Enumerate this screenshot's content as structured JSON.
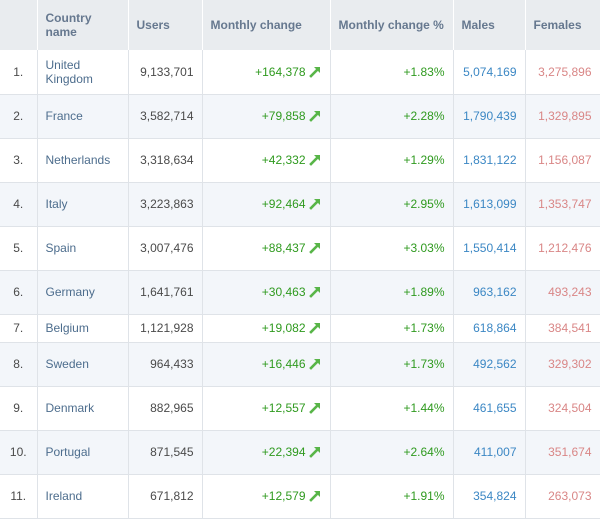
{
  "columns": {
    "country": "Country name",
    "users": "Users",
    "monthly_change": "Monthly change",
    "monthly_change_pct": "Monthly change %",
    "males": "Males",
    "females": "Females"
  },
  "icon": "up-arrow-icon",
  "colors": {
    "positive": "#2f9a1f",
    "males": "#3b87c4",
    "females": "#d98686",
    "country": "#4d6d8d",
    "header_text": "#66788f"
  },
  "rows": [
    {
      "rank": "1.",
      "country": "United Kingdom",
      "users": "9,133,701",
      "change": "+164,378",
      "pct": "+1.83%",
      "males": "5,074,169",
      "females": "3,275,896"
    },
    {
      "rank": "2.",
      "country": "France",
      "users": "3,582,714",
      "change": "+79,858",
      "pct": "+2.28%",
      "males": "1,790,439",
      "females": "1,329,895"
    },
    {
      "rank": "3.",
      "country": "Netherlands",
      "users": "3,318,634",
      "change": "+42,332",
      "pct": "+1.29%",
      "males": "1,831,122",
      "females": "1,156,087"
    },
    {
      "rank": "4.",
      "country": "Italy",
      "users": "3,223,863",
      "change": "+92,464",
      "pct": "+2.95%",
      "males": "1,613,099",
      "females": "1,353,747"
    },
    {
      "rank": "5.",
      "country": "Spain",
      "users": "3,007,476",
      "change": "+88,437",
      "pct": "+3.03%",
      "males": "1,550,414",
      "females": "1,212,476"
    },
    {
      "rank": "6.",
      "country": "Germany",
      "users": "1,641,761",
      "change": "+30,463",
      "pct": "+1.89%",
      "males": "963,162",
      "females": "493,243"
    },
    {
      "rank": "7.",
      "country": "Belgium",
      "users": "1,121,928",
      "change": "+19,082",
      "pct": "+1.73%",
      "males": "618,864",
      "females": "384,541"
    },
    {
      "rank": "8.",
      "country": "Sweden",
      "users": "964,433",
      "change": "+16,446",
      "pct": "+1.73%",
      "males": "492,562",
      "females": "329,302"
    },
    {
      "rank": "9.",
      "country": "Denmark",
      "users": "882,965",
      "change": "+12,557",
      "pct": "+1.44%",
      "males": "461,655",
      "females": "324,504"
    },
    {
      "rank": "10.",
      "country": "Portugal",
      "users": "871,545",
      "change": "+22,394",
      "pct": "+2.64%",
      "males": "411,007",
      "females": "351,674"
    },
    {
      "rank": "11.",
      "country": "Ireland",
      "users": "671,812",
      "change": "+12,579",
      "pct": "+1.91%",
      "males": "354,824",
      "females": "263,073"
    }
  ]
}
